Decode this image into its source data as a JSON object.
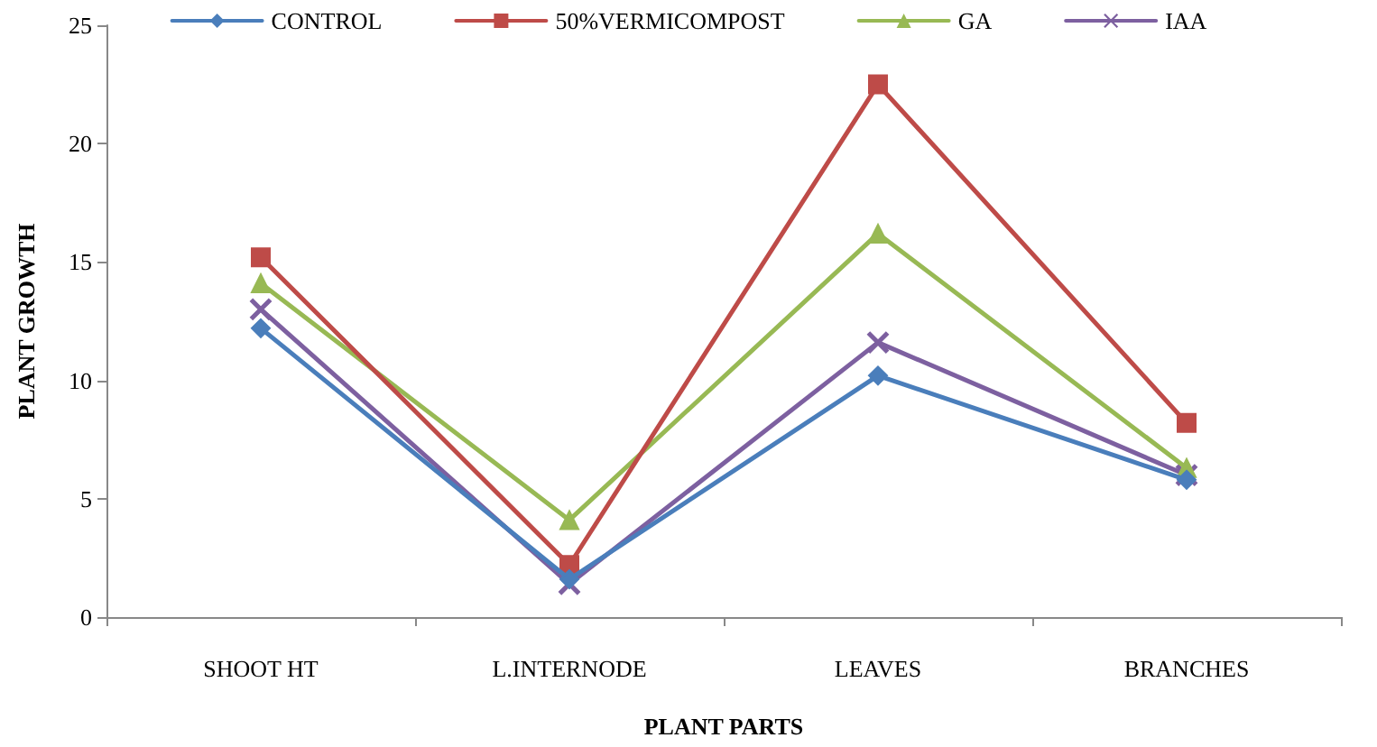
{
  "chart_data": {
    "type": "line",
    "xlabel": "PLANT PARTS",
    "ylabel": "PLANT GROWTH",
    "categories": [
      "SHOOT HT",
      "L.INTERNODE",
      "LEAVES",
      "BRANCHES"
    ],
    "series": [
      {
        "name": "CONTROL",
        "color": "#4a7ebb",
        "marker": "diamond",
        "values": [
          12.2,
          1.6,
          10.2,
          5.8
        ]
      },
      {
        "name": "50%VERMICOMPOST",
        "color": "#be4b48",
        "marker": "square",
        "values": [
          15.2,
          2.2,
          22.5,
          8.2
        ]
      },
      {
        "name": "GA",
        "color": "#98b954",
        "marker": "triangle",
        "values": [
          14.1,
          4.1,
          16.2,
          6.3
        ]
      },
      {
        "name": "IAA",
        "color": "#7d60a0",
        "marker": "cross",
        "values": [
          13.0,
          1.4,
          11.6,
          6.0
        ]
      }
    ],
    "ylim": [
      0,
      25
    ],
    "yticks": [
      0,
      5,
      10,
      15,
      20,
      25
    ],
    "grid": false,
    "legend": "top",
    "line_style": "solid"
  }
}
